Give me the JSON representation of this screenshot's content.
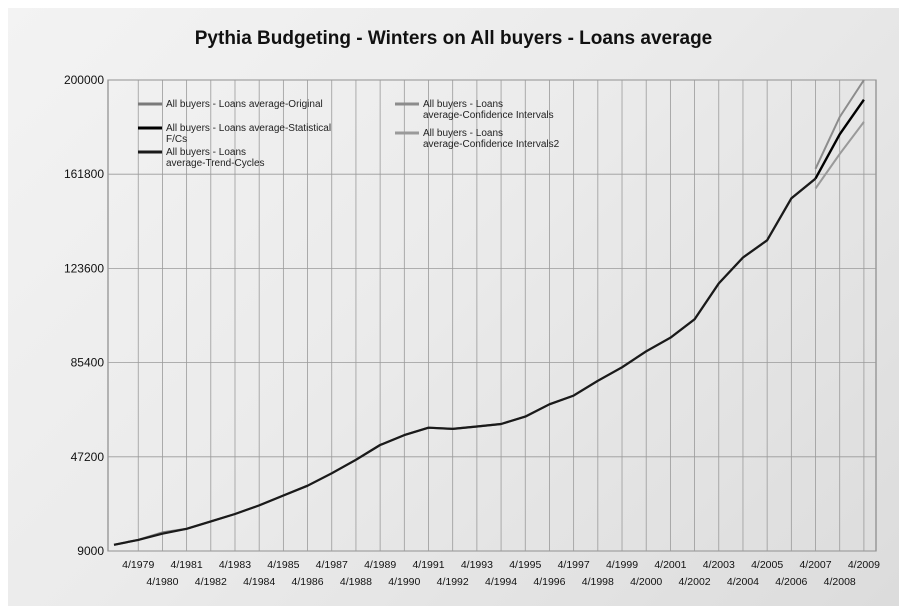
{
  "chart_data": {
    "type": "line",
    "title": "Pythia Budgeting - Winters on All buyers - Loans average",
    "xlabel": "",
    "ylabel": "",
    "ylim": [
      9000,
      200000
    ],
    "xlim": [
      1978.0,
      2009.75
    ],
    "y_ticks": [
      "200000",
      "161800",
      "123600",
      "85400",
      "47200",
      "9000"
    ],
    "y_tick_values": [
      200000,
      161800,
      123600,
      85400,
      47200,
      9000
    ],
    "x_tick_labels": [
      "4/1979",
      "4/1980",
      "4/1981",
      "4/1982",
      "4/1983",
      "4/1984",
      "4/1985",
      "4/1986",
      "4/1987",
      "4/1988",
      "4/1989",
      "4/1990",
      "4/1991",
      "4/1992",
      "4/1993",
      "4/1994",
      "4/1995",
      "4/1996",
      "4/1997",
      "4/1998",
      "4/1999",
      "4/2000",
      "4/2001",
      "4/2002",
      "4/2003",
      "4/2004",
      "4/2005",
      "4/2006",
      "4/2007",
      "4/2008",
      "4/2009"
    ],
    "grid": true,
    "legend_position": "top-left",
    "series": [
      {
        "name": "All buyers - Loans average-Original",
        "color": "#7a7a7a",
        "x": [
          "1978",
          "1979",
          "1980",
          "1981",
          "1982",
          "1983",
          "1984",
          "1985",
          "1986",
          "1987",
          "1988",
          "1989",
          "1990",
          "1991",
          "1992",
          "1993",
          "1994",
          "1995",
          "1996",
          "1997",
          "1998",
          "1999",
          "2000",
          "2001",
          "2002",
          "2003",
          "2004",
          "2005",
          "2006",
          "2007"
        ],
        "values": [
          11500,
          13500,
          16500,
          18000,
          21000,
          24000,
          27500,
          31500,
          35500,
          40500,
          46000,
          52000,
          56000,
          59000,
          58500,
          59500,
          60500,
          63500,
          68500,
          72000,
          78000,
          83500,
          90000,
          95500,
          103000,
          117500,
          128000,
          135000,
          152000,
          160000
        ]
      },
      {
        "name": "All buyers - Loans average-Statistical F/Cs",
        "color": "#000000",
        "x": [
          "2007",
          "2008",
          "2009"
        ],
        "values": [
          160000,
          178000,
          192000
        ]
      },
      {
        "name": "All buyers - Loans average-Trend-Cycles",
        "color": "#1a1a1a",
        "x": [
          "1978",
          "1979",
          "1980",
          "1981",
          "1982",
          "1983",
          "1984",
          "1985",
          "1986",
          "1987",
          "1988",
          "1989",
          "1990",
          "1991",
          "1992",
          "1993",
          "1994",
          "1995",
          "1996",
          "1997",
          "1998",
          "1999",
          "2000",
          "2001",
          "2002",
          "2003",
          "2004",
          "2005",
          "2006",
          "2007"
        ],
        "values": [
          11500,
          13500,
          16000,
          18000,
          21000,
          24000,
          27500,
          31500,
          35500,
          40500,
          46000,
          52000,
          56000,
          59000,
          58500,
          59500,
          60500,
          63500,
          68500,
          72000,
          78000,
          83500,
          90000,
          95500,
          103000,
          117500,
          128000,
          135000,
          152000,
          160000
        ]
      },
      {
        "name": "All buyers - Loans average-Confidence Intervals",
        "color": "#8c8c8c",
        "x": [
          "2007",
          "2008",
          "2009"
        ],
        "values": [
          164000,
          185000,
          200000
        ]
      },
      {
        "name": "All buyers - Loans average-Confidence Intervals2",
        "color": "#9a9a9a",
        "x": [
          "2007",
          "2008",
          "2009"
        ],
        "values": [
          156000,
          170000,
          183000
        ]
      }
    ]
  }
}
